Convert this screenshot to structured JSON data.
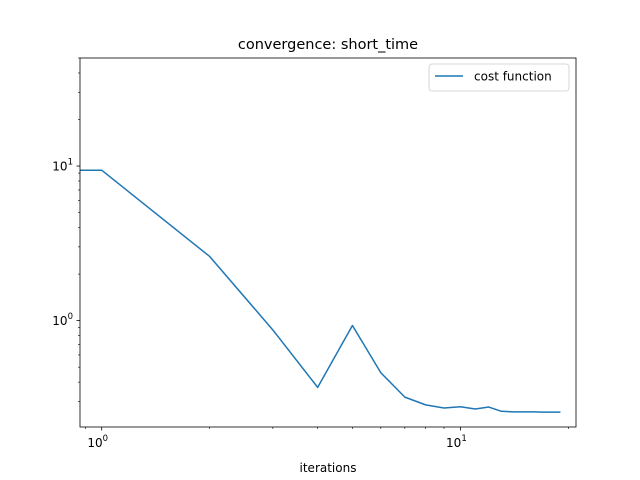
{
  "chart_data": {
    "type": "line",
    "title": "convergence: short_time",
    "xlabel": "iterations",
    "ylabel": "",
    "xscale": "log",
    "yscale": "log",
    "xlim": [
      0.87,
      21
    ],
    "ylim": [
      0.205,
      50
    ],
    "grid": false,
    "legend": {
      "placement": "top-right",
      "entries": [
        "cost function"
      ]
    },
    "x_tick_labels": [
      {
        "value": 1,
        "base": "10",
        "exp": "0"
      },
      {
        "value": 10,
        "base": "10",
        "exp": "1"
      }
    ],
    "y_tick_labels": [
      {
        "value": 1,
        "base": "10",
        "exp": "0"
      },
      {
        "value": 10,
        "base": "10",
        "exp": "1"
      }
    ],
    "series": [
      {
        "name": "cost function",
        "color": "#1f77b4",
        "x": [
          0,
          1,
          2,
          3,
          4,
          5,
          6,
          7,
          8,
          9,
          10,
          11,
          12,
          13,
          14,
          15,
          16,
          17,
          18,
          19
        ],
        "y": [
          9.4,
          9.4,
          2.6,
          0.87,
          0.37,
          0.93,
          0.46,
          0.32,
          0.285,
          0.272,
          0.277,
          0.268,
          0.276,
          0.259,
          0.257,
          0.257,
          0.257,
          0.256,
          0.256,
          0.256
        ]
      }
    ]
  }
}
